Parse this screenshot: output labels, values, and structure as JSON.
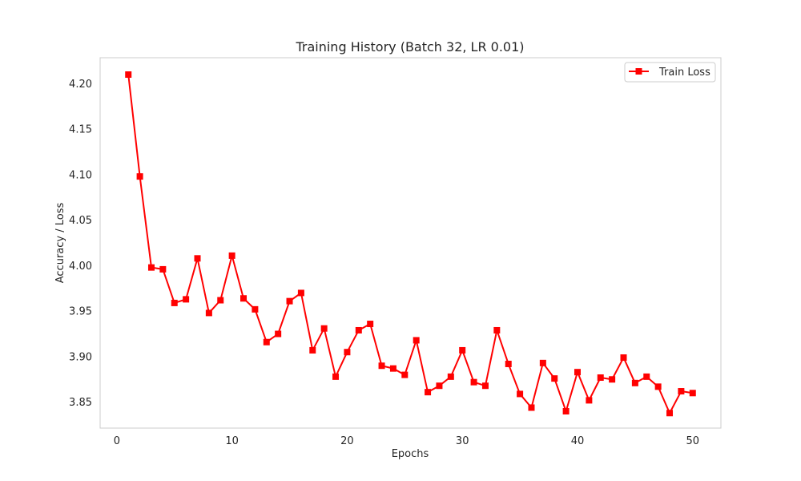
{
  "chart_data": {
    "type": "line",
    "title": "Training History (Batch 32, LR 0.01)",
    "xlabel": "Epochs",
    "ylabel": "Accuracy / Loss",
    "xlim": [
      -1.45,
      52.45
    ],
    "ylim": [
      3.8215,
      4.2285
    ],
    "xticks": [
      0,
      10,
      20,
      30,
      40,
      50
    ],
    "yticks": [
      3.85,
      3.9,
      3.95,
      4.0,
      4.05,
      4.1,
      4.15,
      4.2
    ],
    "ytick_labels": [
      "3.85",
      "3.90",
      "3.95",
      "4.00",
      "4.05",
      "4.10",
      "4.15",
      "4.20"
    ],
    "grid": false,
    "legend_position": "top-right",
    "colors": {
      "series": "#ff0000",
      "frame": "#cccccc",
      "text": "#262626"
    },
    "series": [
      {
        "name": "Train Loss",
        "marker": "square",
        "x": [
          1,
          2,
          3,
          4,
          5,
          6,
          7,
          8,
          9,
          10,
          11,
          12,
          13,
          14,
          15,
          16,
          17,
          18,
          19,
          20,
          21,
          22,
          23,
          24,
          25,
          26,
          27,
          28,
          29,
          30,
          31,
          32,
          33,
          34,
          35,
          36,
          37,
          38,
          39,
          40,
          41,
          42,
          43,
          44,
          45,
          46,
          47,
          48,
          49,
          50
        ],
        "y": [
          4.21,
          4.098,
          3.998,
          3.996,
          3.959,
          3.963,
          4.008,
          3.948,
          3.962,
          4.011,
          3.964,
          3.952,
          3.916,
          3.925,
          3.961,
          3.97,
          3.907,
          3.931,
          3.878,
          3.905,
          3.929,
          3.936,
          3.89,
          3.887,
          3.88,
          3.918,
          3.861,
          3.868,
          3.878,
          3.907,
          3.872,
          3.868,
          3.929,
          3.892,
          3.859,
          3.844,
          3.893,
          3.876,
          3.84,
          3.883,
          3.852,
          3.877,
          3.875,
          3.899,
          3.871,
          3.878,
          3.867,
          3.838,
          3.862,
          3.86
        ]
      }
    ]
  }
}
